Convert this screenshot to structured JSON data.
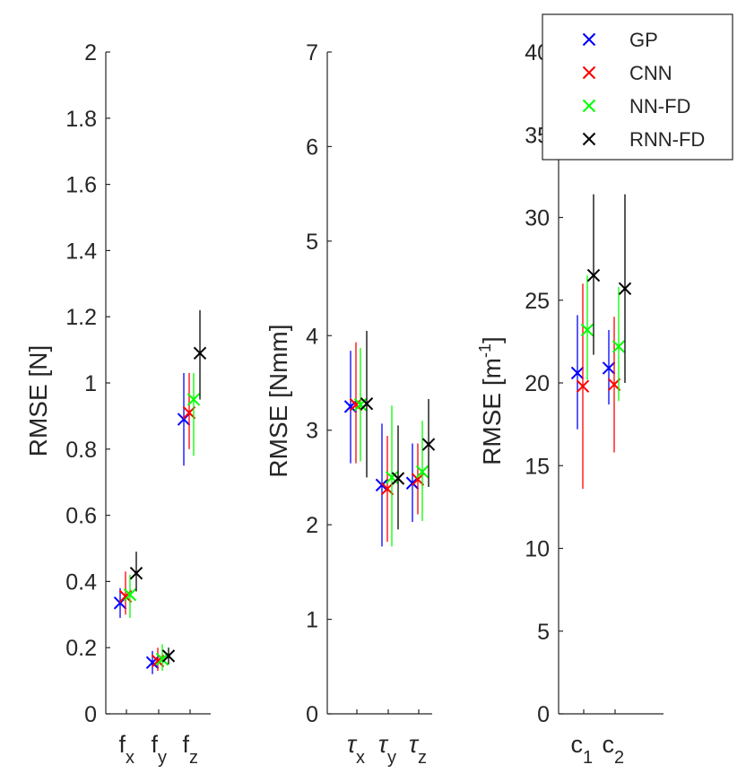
{
  "chart_data": [
    {
      "type": "scatter",
      "name": "force",
      "ylabel": "RMSE [N]",
      "ylim": [
        0,
        2
      ],
      "yticks": [
        0,
        0.2,
        0.4,
        0.6,
        0.8,
        1,
        1.2,
        1.4,
        1.6,
        1.8,
        2
      ],
      "yticklabels": [
        "0",
        "0.2",
        "0.4",
        "0.6",
        "0.8",
        "1",
        "1.2",
        "1.4",
        "1.6",
        "1.8",
        "2"
      ],
      "categories": [
        {
          "main": "f",
          "sub": "x",
          "italic": false
        },
        {
          "main": "f",
          "sub": "y",
          "italic": false
        },
        {
          "main": "f",
          "sub": "z",
          "italic": false
        }
      ],
      "series": [
        {
          "name": "GP",
          "values": [
            0.335,
            0.155,
            0.89
          ],
          "low": [
            0.29,
            0.12,
            0.75
          ],
          "high": [
            0.38,
            0.19,
            1.03
          ]
        },
        {
          "name": "CNN",
          "values": [
            0.355,
            0.16,
            0.91
          ],
          "low": [
            0.3,
            0.13,
            0.8
          ],
          "high": [
            0.43,
            0.2,
            1.03
          ]
        },
        {
          "name": "NN-FD",
          "values": [
            0.36,
            0.165,
            0.95
          ],
          "low": [
            0.29,
            0.13,
            0.78
          ],
          "high": [
            0.42,
            0.21,
            1.03
          ]
        },
        {
          "name": "RNN-FD",
          "values": [
            0.425,
            0.175,
            1.09
          ],
          "low": [
            0.37,
            0.15,
            0.95
          ],
          "high": [
            0.49,
            0.2,
            1.22
          ]
        }
      ]
    },
    {
      "type": "scatter",
      "name": "torque",
      "ylabel": "RMSE [Nmm]",
      "ylim": [
        0,
        7
      ],
      "yticks": [
        0,
        1,
        2,
        3,
        4,
        5,
        6,
        7
      ],
      "yticklabels": [
        "0",
        "1",
        "2",
        "3",
        "4",
        "5",
        "6",
        "7"
      ],
      "categories": [
        {
          "main": "τ",
          "sub": "x",
          "italic": true
        },
        {
          "main": "τ",
          "sub": "y",
          "italic": true
        },
        {
          "main": "τ",
          "sub": "z",
          "italic": true
        }
      ],
      "series": [
        {
          "name": "GP",
          "values": [
            3.25,
            2.42,
            2.44
          ],
          "low": [
            2.65,
            1.77,
            2.03
          ],
          "high": [
            3.84,
            3.07,
            2.86
          ]
        },
        {
          "name": "CNN",
          "values": [
            3.27,
            2.38,
            2.48
          ],
          "low": [
            2.65,
            1.82,
            2.11
          ],
          "high": [
            3.93,
            2.94,
            2.86
          ]
        },
        {
          "name": "NN-FD",
          "values": [
            3.27,
            2.5,
            2.56
          ],
          "low": [
            2.67,
            1.77,
            2.04
          ],
          "high": [
            3.87,
            3.26,
            3.1
          ]
        },
        {
          "name": "RNN-FD",
          "values": [
            3.28,
            2.49,
            2.85
          ],
          "low": [
            2.5,
            1.95,
            2.4
          ],
          "high": [
            4.05,
            3.05,
            3.33
          ]
        }
      ]
    },
    {
      "type": "scatter",
      "name": "curvature",
      "ylabel": "RMSE [m",
      "ylabel_sup": "-1",
      "ylabel_end": "]",
      "ylim": [
        0,
        40
      ],
      "yticks": [
        0,
        5,
        10,
        15,
        20,
        25,
        30,
        35,
        40
      ],
      "yticklabels": [
        "0",
        "5",
        "10",
        "15",
        "20",
        "25",
        "30",
        "35",
        "40"
      ],
      "categories": [
        {
          "main": "c",
          "sub": "1",
          "italic": false
        },
        {
          "main": "c",
          "sub": "2",
          "italic": false
        }
      ],
      "series": [
        {
          "name": "GP",
          "values": [
            20.6,
            20.9
          ],
          "low": [
            17.2,
            18.7
          ],
          "high": [
            24.1,
            23.2
          ]
        },
        {
          "name": "CNN",
          "values": [
            19.8,
            19.9
          ],
          "low": [
            13.6,
            15.8
          ],
          "high": [
            26.0,
            24.0
          ]
        },
        {
          "name": "NN-FD",
          "values": [
            23.2,
            22.2
          ],
          "low": [
            20.2,
            18.9
          ],
          "high": [
            26.5,
            25.8
          ]
        },
        {
          "name": "RNN-FD",
          "values": [
            26.5,
            25.7
          ],
          "low": [
            21.7,
            20.0
          ],
          "high": [
            31.4,
            31.4
          ]
        }
      ]
    }
  ],
  "legend": {
    "location": "top-right",
    "entries": [
      {
        "label": "GP",
        "color": "#0000ff"
      },
      {
        "label": "CNN",
        "color": "#ff0000"
      },
      {
        "label": "NN-FD",
        "color": "#00ff00"
      },
      {
        "label": "RNN-FD",
        "color": "#000000"
      }
    ]
  }
}
